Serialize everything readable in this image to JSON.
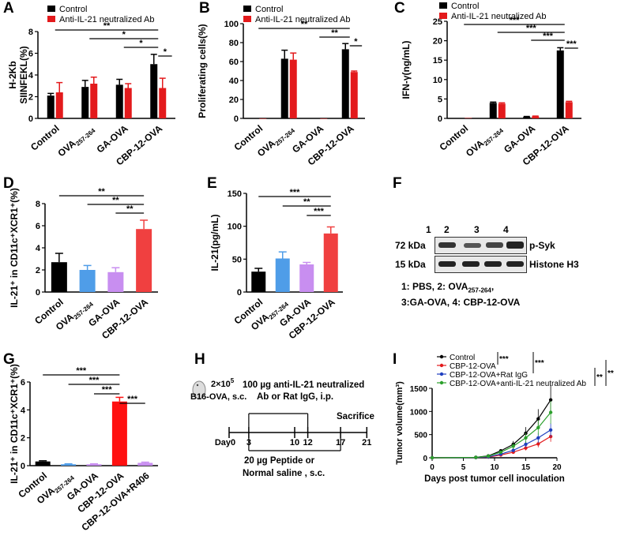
{
  "colors": {
    "control": "#000000",
    "anti": "#e31a1c",
    "blue": "#4f9de8",
    "violet": "#c88ef0",
    "red": "#f04040",
    "red2": "#ff1010"
  },
  "panel_labels": {
    "A": "A",
    "B": "B",
    "C": "C",
    "D": "D",
    "E": "E",
    "F": "F",
    "G": "G",
    "H": "H",
    "I": "I"
  },
  "legend_ab": {
    "control": "Control",
    "anti": "Anti-IL-21 neutralized Ab"
  },
  "chart_data": [
    {
      "id": "A",
      "type": "bar",
      "ylabel_lines": [
        "H-2Kb",
        "SIINFEKL(%)"
      ],
      "ylim": [
        0,
        8
      ],
      "yticks": [
        0,
        2,
        4,
        6,
        8
      ],
      "categories": [
        "Control",
        "OVA257-264",
        "GA-OVA",
        "CBP-12-OVA"
      ],
      "series": [
        {
          "name": "Control",
          "values": [
            2.1,
            2.9,
            3.1,
            5.0
          ],
          "errors": [
            0.2,
            0.6,
            0.5,
            0.9
          ]
        },
        {
          "name": "Anti-IL-21 neutralized Ab",
          "values": [
            2.4,
            3.2,
            2.8,
            2.8
          ],
          "errors": [
            0.9,
            0.6,
            0.4,
            0.9
          ]
        }
      ],
      "significance": [
        {
          "from": 0,
          "to": 3,
          "label": "**"
        },
        {
          "from": 1,
          "to": 3,
          "label": "*"
        },
        {
          "from": 2,
          "to": 3,
          "label": "*"
        },
        {
          "from": 3,
          "to": 3.4,
          "label": "*"
        }
      ]
    },
    {
      "id": "B",
      "type": "bar",
      "ylabel_lines": [
        "Proliferating cells(%)"
      ],
      "ylim": [
        0,
        100
      ],
      "yticks": [
        0,
        20,
        40,
        60,
        80,
        100
      ],
      "categories": [
        "Control",
        "OVA257-264",
        "GA-OVA",
        "CBP-12-OVA"
      ],
      "series": [
        {
          "name": "Control",
          "values": [
            0,
            63,
            0,
            73
          ],
          "errors": [
            0,
            9,
            0,
            6
          ]
        },
        {
          "name": "Anti-IL-21 neutralized Ab",
          "values": [
            0,
            62,
            0,
            49
          ],
          "errors": [
            0,
            7,
            0,
            1
          ]
        }
      ],
      "significance": [
        {
          "from": 0,
          "to": 3,
          "label": "**"
        },
        {
          "from": 2,
          "to": 3,
          "label": "**"
        },
        {
          "from": 3,
          "to": 3.4,
          "label": "*"
        }
      ]
    },
    {
      "id": "C",
      "type": "bar",
      "ylabel_lines": [
        "IFN-γ(ng/mL)"
      ],
      "ylim": [
        0,
        25
      ],
      "yticks": [
        0,
        5,
        10,
        15,
        20,
        25
      ],
      "categories": [
        "Control",
        "OVA257-264",
        "GA-OVA",
        "CBP-12-OVA"
      ],
      "series": [
        {
          "name": "Control",
          "values": [
            0.1,
            4.0,
            0.4,
            17.5
          ],
          "errors": [
            0,
            0.2,
            0.1,
            0.7
          ]
        },
        {
          "name": "Anti-IL-21 neutralized Ab",
          "values": [
            0.1,
            3.8,
            0.5,
            4.2
          ],
          "errors": [
            0,
            0.2,
            0.1,
            0.2
          ]
        }
      ],
      "significance": [
        {
          "from": 0,
          "to": 3,
          "label": "***"
        },
        {
          "from": 1,
          "to": 3,
          "label": "***"
        },
        {
          "from": 2,
          "to": 3,
          "label": "***"
        },
        {
          "from": 3,
          "to": 3.4,
          "label": "***"
        }
      ]
    },
    {
      "id": "D",
      "type": "bar",
      "ylabel": "IL-21⁺ in CD11c⁺XCR1⁺(%)",
      "ylim": [
        0,
        8
      ],
      "yticks": [
        0,
        2,
        4,
        6,
        8
      ],
      "categories": [
        "Control",
        "OVA257-264",
        "GA-OVA",
        "CBP-12-OVA"
      ],
      "values": [
        2.7,
        2.0,
        1.8,
        5.7
      ],
      "errors": [
        0.8,
        0.4,
        0.4,
        0.8
      ],
      "bar_colors": [
        "#000000",
        "#4f9de8",
        "#c88ef0",
        "#f04040"
      ],
      "significance": [
        {
          "from": 0,
          "to": 3,
          "label": "**"
        },
        {
          "from": 1,
          "to": 3,
          "label": "**"
        },
        {
          "from": 2,
          "to": 3,
          "label": "**"
        }
      ]
    },
    {
      "id": "E",
      "type": "bar",
      "ylabel": "IL-21(pg/mL)",
      "ylim": [
        0,
        150
      ],
      "yticks": [
        0,
        50,
        100,
        150
      ],
      "categories": [
        "Control",
        "OVA257-264",
        "GA-OVA",
        "CBP-12-OVA"
      ],
      "values": [
        31,
        51,
        42,
        89
      ],
      "errors": [
        5,
        10,
        3,
        10
      ],
      "bar_colors": [
        "#000000",
        "#4f9de8",
        "#c88ef0",
        "#f04040"
      ],
      "significance": [
        {
          "from": 0,
          "to": 3,
          "label": "***"
        },
        {
          "from": 1,
          "to": 3,
          "label": "**"
        },
        {
          "from": 2,
          "to": 3,
          "label": "***"
        }
      ]
    },
    {
      "id": "G",
      "type": "bar",
      "ylabel": "IL-21⁺ in CD11c⁺XCR1⁺(%)",
      "ylim": [
        0,
        6
      ],
      "yticks": [
        0,
        2,
        4,
        6
      ],
      "categories": [
        "Control",
        "OVA257-264",
        "GA-OVA",
        "CBP-12-OVA",
        "CBP-12-OVA+R406"
      ],
      "values": [
        0.3,
        0.1,
        0.1,
        4.6,
        0.2
      ],
      "errors": [
        0.05,
        0.03,
        0.03,
        0.3,
        0.05
      ],
      "bar_colors": [
        "#000000",
        "#4f9de8",
        "#c88ef0",
        "#ff1010",
        "#c88ef0"
      ],
      "significance": [
        {
          "from": 0,
          "to": 3,
          "label": "***"
        },
        {
          "from": 1,
          "to": 3,
          "label": "***"
        },
        {
          "from": 2,
          "to": 3,
          "label": "***"
        },
        {
          "from": 3,
          "to": 4,
          "label": "***"
        }
      ]
    },
    {
      "id": "I",
      "type": "line",
      "xlabel": "Days post tumor cell inoculation",
      "ylabel": "Tumor volume(mm³)",
      "x": [
        0,
        7,
        9,
        11,
        13,
        15,
        17,
        19
      ],
      "xlim": [
        0,
        20
      ],
      "xticks": [
        0,
        5,
        10,
        15,
        20
      ],
      "ylim": [
        0,
        1500
      ],
      "yticks": [
        0,
        500,
        1000,
        1500
      ],
      "series": [
        {
          "name": "Control",
          "color": "#000000",
          "values": [
            0,
            10,
            40,
            150,
            290,
            530,
            840,
            1250
          ]
        },
        {
          "name": "CBP-12-OVA",
          "color": "#e31a1c",
          "values": [
            0,
            5,
            15,
            60,
            120,
            210,
            300,
            460
          ]
        },
        {
          "name": "CBP-12-OVA+Rat IgG",
          "color": "#1f3fbf",
          "values": [
            0,
            5,
            20,
            80,
            160,
            290,
            430,
            600
          ]
        },
        {
          "name": "CBP-12-OVA+anti-IL-21 neutralized Ab",
          "color": "#2ca02c",
          "values": [
            0,
            8,
            35,
            120,
            250,
            430,
            650,
            980
          ]
        }
      ],
      "significance": [
        "***",
        "***",
        "**",
        "**"
      ]
    }
  ],
  "western": {
    "kda1": "72 kDa",
    "kda2": "15 kDa",
    "lanes": [
      "1",
      "2",
      "3",
      "4"
    ],
    "band1": "p-Syk",
    "band2": "Histone H3",
    "cap1a": "1: PBS, 2: OVA",
    "cap1sub": "257-264",
    "cap1b": ",",
    "cap2": "3:GA-OVA, 4: CBP-12-OVA"
  },
  "schematic": {
    "top1": "100 µg anti-IL-21 neutralized",
    "top2": "Ab or Rat IgG, i.p.",
    "cells1": "2×10",
    "cells_exp": "5",
    "cells2": "B16-OVA, s.c.",
    "days": [
      "Day0",
      "3",
      "10",
      "12",
      "17",
      "21"
    ],
    "sacrifice": "Sacrifice",
    "bottom1": "20 µg Peptide or",
    "bottom2": "Normal saline , s.c."
  }
}
